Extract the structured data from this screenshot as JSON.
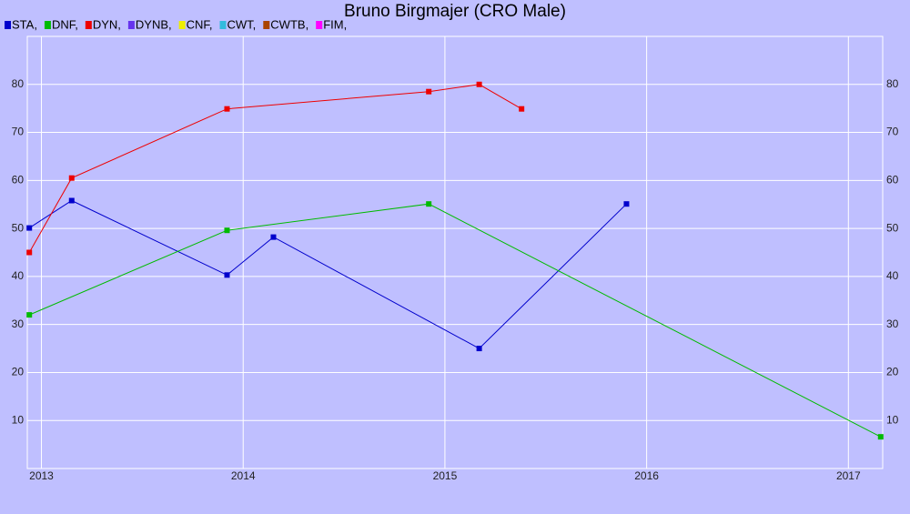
{
  "chart_data": {
    "type": "line",
    "title": "Bruno Birgmajer (CRO Male)",
    "xlim": [
      2012.93,
      2017.17
    ],
    "xticks": [
      2013,
      2014,
      2015,
      2016,
      2017
    ],
    "ylim": [
      0,
      90
    ],
    "yticks": [
      10,
      20,
      30,
      40,
      50,
      60,
      70,
      80
    ],
    "grid": true,
    "series": [
      {
        "name": "STA,",
        "color": "#0000cc",
        "x": [
          2012.94,
          2013.15,
          2013.92,
          2014.15,
          2015.17,
          2015.9
        ],
        "values": [
          50.1,
          55.8,
          40.3,
          48.2,
          25.0,
          55.1
        ]
      },
      {
        "name": "DNF,",
        "color": "#00bb00",
        "x": [
          2012.94,
          2013.92,
          2014.92,
          2017.16
        ],
        "values": [
          32.0,
          49.6,
          55.1,
          6.6
        ]
      },
      {
        "name": "DYN,",
        "color": "#ee0000",
        "x": [
          2012.94,
          2013.15,
          2013.92,
          2014.92,
          2015.17,
          2015.38
        ],
        "values": [
          45.0,
          60.5,
          74.9,
          78.5,
          80.0,
          74.9
        ]
      },
      {
        "name": "DYNB,",
        "color": "#6633ee",
        "x": [],
        "values": []
      },
      {
        "name": "CNF,",
        "color": "#eeee00",
        "x": [],
        "values": []
      },
      {
        "name": "CWT,",
        "color": "#33bbdd",
        "x": [],
        "values": []
      },
      {
        "name": "CWTB,",
        "color": "#aa4400",
        "x": [],
        "values": []
      },
      {
        "name": "FIM,",
        "color": "#ff00ff",
        "x": [],
        "values": []
      }
    ]
  }
}
